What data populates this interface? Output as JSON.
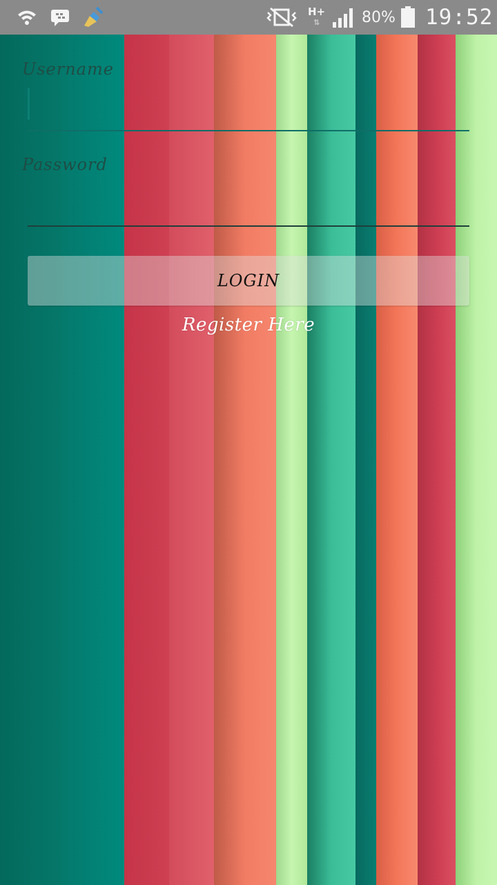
{
  "status_bar": {
    "icons": [
      "wifi-icon",
      "bbm-chat-icon",
      "broom-cleaner-icon",
      "mute-vibrate-icon",
      "network-type-icon",
      "signal-icon",
      "battery-icon"
    ],
    "network_type": "H+",
    "battery_percent": "80%",
    "time": "19:52"
  },
  "form": {
    "username_label": "Username",
    "username_value": "",
    "password_label": "Password",
    "password_value": "",
    "login_label": "LOGIN",
    "register_label": "Register Here"
  },
  "colors": {
    "stripes": [
      "#036b5e",
      "#00897b",
      "#cc3a4c",
      "#e05d68",
      "#d26a54",
      "#f7826a",
      "#b7efa0",
      "#1e8c6b",
      "#3ec39c",
      "#03776c",
      "#f07055",
      "#cc3d52",
      "#c3f5ad"
    ],
    "status_bar": "#8a8a8a",
    "accent": "#0d7f74"
  }
}
